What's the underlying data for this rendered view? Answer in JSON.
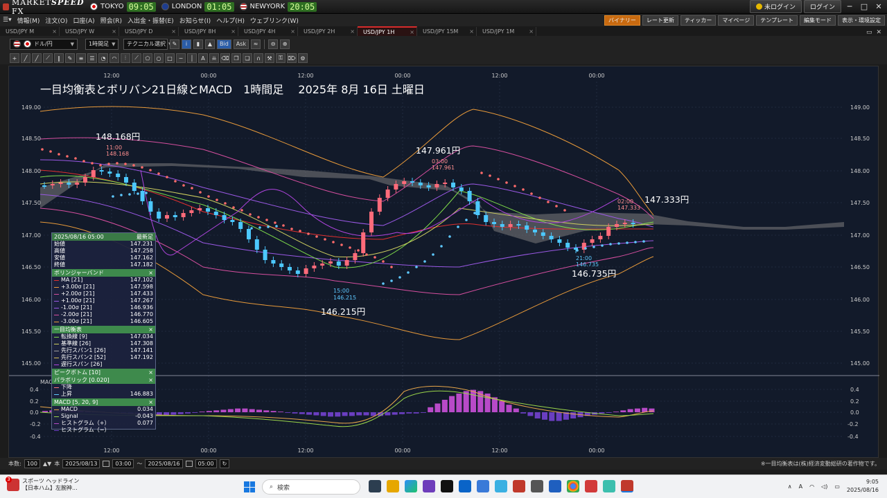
{
  "app": {
    "logo": "MARKETSPEED FX",
    "logo_a": "MARKET",
    "logo_b": "SPEED",
    "logo_c": " FX",
    "clocks": [
      {
        "city": "TOKYO",
        "time": "09:05"
      },
      {
        "city": "LONDON",
        "time": "01:05"
      },
      {
        "city": "NEWYORK",
        "time": "20:05"
      }
    ],
    "login_status": "未ログイン",
    "login_button": "ログイン"
  },
  "menu": {
    "items": [
      "情報(M)",
      "注文(O)",
      "口座(A)",
      "照会(R)",
      "入出金・振替(E)",
      "お知らせ(I)",
      "ヘルプ(H)",
      "ウェブリンク(W)"
    ],
    "right_buttons": [
      "バイナリー",
      "レート更新",
      "ティッカー",
      "マイページ",
      "テンプレート",
      "編集モード",
      "表示・環境設定"
    ]
  },
  "tabs": [
    "USD/JPY M",
    "USD/JPY W",
    "USD/JPY D",
    "USD/JPY 8H",
    "USD/JPY 4H",
    "USD/JPY 2H",
    "USD/JPY 1H",
    "USD/JPY 15M",
    "USD/JPY 1M"
  ],
  "active_tab": "USD/JPY 1H",
  "toolbar": {
    "pair": "ドル/円",
    "timeframe": "1時間足",
    "technical": "テクニカル選択",
    "bid": "Bid",
    "ask": "Ask"
  },
  "chart": {
    "title": "一目均衡表とボリバン21日線とMACD　1時間足　 2025年 8月 16日 土曜日",
    "time_labels": [
      "12:00",
      "00:00",
      "12:00",
      "00:00",
      "12:00",
      "00:00"
    ],
    "price_labels": [
      "149.00",
      "148.50",
      "148.00",
      "147.50",
      "147.00",
      "146.50",
      "146.00",
      "145.50",
      "145.00"
    ],
    "macd_label": "MACD",
    "macd_labels": [
      "0.4",
      "0.2",
      "0.0",
      "-0.2",
      "-0.4"
    ],
    "annotations": {
      "high1": "148.168円",
      "high1_time": "11:00",
      "high1_val": "148.168",
      "low1": "146.215円",
      "low1_time": "15:00",
      "low1_val": "146.215",
      "high2": "147.961円",
      "high2_time": "03:00",
      "high2_val": "147.961",
      "low2": "146.735円",
      "low2_time": "21:00",
      "low2_val": "146.735",
      "last": "147.333円",
      "last_time": "02:00",
      "last_val": "147.333"
    }
  },
  "panel": {
    "date": "2025/08/16 05:00",
    "latest": "最新足",
    "ohlc": [
      {
        "label": "始値",
        "value": "147.231"
      },
      {
        "label": "高値",
        "value": "147.258"
      },
      {
        "label": "安値",
        "value": "147.162"
      },
      {
        "label": "終値",
        "value": "147.182"
      }
    ],
    "bb_title": "ボリンジャーバンド",
    "bb": [
      {
        "label": "MA [21]",
        "value": "147.102",
        "color": "#e23030"
      },
      {
        "label": "+3.00σ [21]",
        "value": "147.598",
        "color": "#e89a3a"
      },
      {
        "label": "+2.00σ [21]",
        "value": "147.433",
        "color": "#d74fa0"
      },
      {
        "label": "+1.00σ [21]",
        "value": "147.267",
        "color": "#9b59e6"
      },
      {
        "label": "-1.00σ [21]",
        "value": "146.936",
        "color": "#9b59e6"
      },
      {
        "label": "-2.00σ [21]",
        "value": "146.770",
        "color": "#d74fa0"
      },
      {
        "label": "-3.00σ [21]",
        "value": "146.605",
        "color": "#e89a3a"
      }
    ],
    "ichimoku_title": "一目均衡表",
    "ichimoku": [
      {
        "label": "転換線 [9]",
        "value": "147.034",
        "color": "#7fdc4a"
      },
      {
        "label": "基準線 [26]",
        "value": "147.308",
        "color": "#cfcf60"
      },
      {
        "label": "先行スパン1 [26]",
        "value": "147.141",
        "color": "#a0a0a0"
      },
      {
        "label": "先行スパン2 [52]",
        "value": "147.192",
        "color": "#d9c25a"
      },
      {
        "label": "遅行スパン [26]",
        "value": "",
        "color": "#b045e0"
      }
    ],
    "peak_title": "ピークボトム [10]",
    "parabolic_title": "パラボリック [0.020]",
    "parabolic": [
      {
        "label": "下降",
        "value": ""
      },
      {
        "label": "上昇",
        "value": "146.883"
      }
    ],
    "macd_title": "MACD [5, 20, 9]",
    "macd": [
      {
        "label": "MACD",
        "value": "0.034",
        "color": "#e8a64a"
      },
      {
        "label": "Signal",
        "value": "-0.043",
        "color": "#9bd64a"
      },
      {
        "label": "ヒストグラム（+）",
        "value": "0.077",
        "color": "#b84ac8"
      },
      {
        "label": "ヒストグラム（−）",
        "value": "",
        "color": "#6a3ec0"
      }
    ]
  },
  "bottom": {
    "count_label": "本数:",
    "count": "100",
    "main_label": "本",
    "from_date": "2025/08/13",
    "from_time": "03:00",
    "to_date": "2025/08/16",
    "to_time": "05:00",
    "tilde": "〜",
    "copyright": "※一目均衡表は(株)経済変動総研の著作物です。"
  },
  "taskbar": {
    "news_title": "スポーツ ヘッドライン",
    "news_text": "【日本ハム】左腕神...",
    "badge": "3",
    "search": "検索",
    "time": "9:05",
    "date": "2025/08/16"
  }
}
